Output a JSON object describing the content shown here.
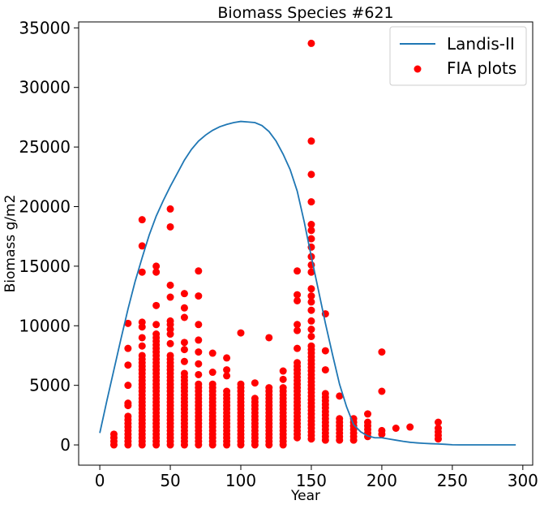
{
  "chart_data": {
    "type": "line+scatter",
    "title": "Biomass Species #621",
    "xlabel": "Year",
    "ylabel": "Biomass g/m2",
    "xlim": [
      -15,
      307
    ],
    "ylim": [
      -1700,
      35500
    ],
    "xticks": [
      0,
      50,
      100,
      150,
      200,
      250,
      300
    ],
    "yticks": [
      0,
      5000,
      10000,
      15000,
      20000,
      25000,
      30000,
      35000
    ],
    "legend_position": "top-right",
    "line_color": "#1f77b4",
    "scatter_color": "#ff0000",
    "series": [
      {
        "name": "Landis-II",
        "kind": "line",
        "x": [
          0,
          5,
          10,
          15,
          20,
          25,
          30,
          35,
          40,
          45,
          50,
          55,
          60,
          65,
          70,
          75,
          80,
          85,
          90,
          95,
          100,
          105,
          110,
          115,
          120,
          125,
          130,
          135,
          140,
          145,
          150,
          155,
          160,
          165,
          170,
          175,
          180,
          185,
          190,
          195,
          200,
          205,
          210,
          215,
          220,
          225,
          230,
          235,
          240,
          245,
          250,
          255,
          260,
          265,
          270,
          275,
          280,
          285,
          290,
          295
        ],
        "y": [
          1000,
          3700,
          6300,
          8900,
          11400,
          13700,
          15700,
          17600,
          19200,
          20500,
          21700,
          22800,
          23900,
          24800,
          25500,
          26000,
          26400,
          26700,
          26900,
          27050,
          27150,
          27100,
          27050,
          26800,
          26300,
          25500,
          24400,
          23100,
          21300,
          18700,
          15800,
          13000,
          10200,
          7600,
          5100,
          3200,
          1700,
          1100,
          750,
          600,
          600,
          500,
          400,
          300,
          220,
          170,
          130,
          100,
          80,
          50,
          10,
          5,
          5,
          5,
          5,
          5,
          5,
          5,
          5,
          5
        ]
      },
      {
        "name": "FIA plots",
        "kind": "scatter",
        "columns": [
          {
            "x": 10,
            "ymax": 1000,
            "extra": []
          },
          {
            "x": 20,
            "ymax": 2500,
            "extra": [
              3300,
              3500,
              5000,
              6700,
              8100,
              10200
            ]
          },
          {
            "x": 30,
            "ymax": 7600,
            "extra": [
              8300,
              9000,
              9900,
              10300,
              14500,
              16700,
              18900
            ]
          },
          {
            "x": 40,
            "ymax": 9300,
            "extra": [
              10100,
              11700,
              14500,
              15000
            ]
          },
          {
            "x": 50,
            "ymax": 7600,
            "extra": [
              8500,
              9300,
              9700,
              10100,
              10400,
              12400,
              13400,
              18300,
              19800
            ]
          },
          {
            "x": 60,
            "ymax": 6200,
            "extra": [
              7000,
              8000,
              8600,
              10700,
              11500,
              12700
            ]
          },
          {
            "x": 70,
            "ymax": 5200,
            "extra": [
              5900,
              6800,
              7800,
              8800,
              10100,
              12500,
              14600
            ]
          },
          {
            "x": 80,
            "ymax": 5200,
            "extra": [
              6100,
              7700
            ]
          },
          {
            "x": 90,
            "ymax": 4700,
            "extra": [
              5800,
              6300,
              7300
            ]
          },
          {
            "x": 100,
            "ymax": 5200,
            "extra": [
              9400
            ]
          },
          {
            "x": 110,
            "ymax": 4100,
            "extra": [
              5200
            ]
          },
          {
            "x": 120,
            "ymax": 4900,
            "extra": [
              9000
            ]
          },
          {
            "x": 130,
            "ymax": 4800,
            "extra": [
              5500,
              6200
            ]
          },
          {
            "x": 140,
            "ymax": 7100,
            "extra": [
              8100,
              9600,
              10100,
              12100,
              12600,
              14600
            ]
          },
          {
            "x": 150,
            "ymax": 8500,
            "extra": [
              9100,
              9700,
              10400,
              11300,
              12000,
              12500,
              13100,
              14500,
              15100,
              15800,
              16600,
              17300,
              18000,
              18500,
              20400,
              22700,
              25500,
              33700
            ]
          },
          {
            "x": 160,
            "ymax": 4500,
            "extra": [
              6300,
              7900,
              11000
            ]
          },
          {
            "x": 170,
            "ymax": 2400,
            "extra": [
              4100
            ]
          },
          {
            "x": 180,
            "ymax": 2300,
            "extra": []
          },
          {
            "x": 190,
            "ymax": 2000,
            "extra": [
              2600
            ]
          },
          {
            "x": 200,
            "ymax": 1300,
            "extra": [
              4500,
              7800
            ]
          },
          {
            "x": 210,
            "ymax": 1500,
            "extra": []
          },
          {
            "x": 220,
            "ymax": 1700,
            "extra": []
          },
          {
            "x": 240,
            "ymax": 1500,
            "extra": [
              1900
            ]
          }
        ],
        "column_ymin": {
          "default": 0,
          "140": 600,
          "150": 500,
          "160": 400,
          "170": 400,
          "180": 400,
          "190": 700,
          "200": 900,
          "210": 1400,
          "220": 1500,
          "240": 500
        }
      }
    ]
  }
}
